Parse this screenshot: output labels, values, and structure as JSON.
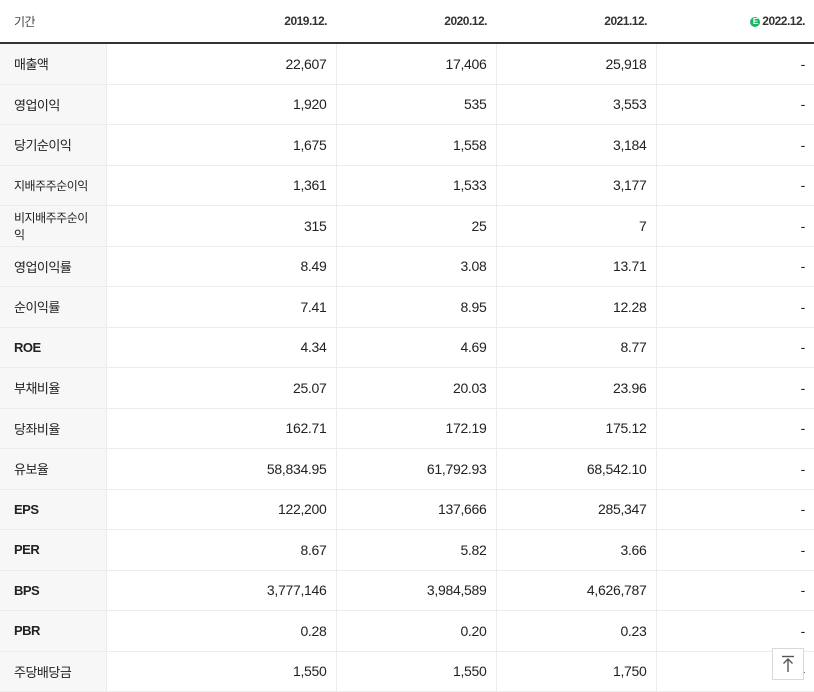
{
  "header": {
    "label": "기간",
    "periods": [
      "2019.12.",
      "2020.12.",
      "2021.12.",
      "2022.12."
    ],
    "estimate_badge": "E"
  },
  "rows": [
    {
      "label": "매출액",
      "values": [
        "22,607",
        "17,406",
        "25,918",
        "-"
      ]
    },
    {
      "label": "영업이익",
      "values": [
        "1,920",
        "535",
        "3,553",
        "-"
      ]
    },
    {
      "label": "당기순이익",
      "values": [
        "1,675",
        "1,558",
        "3,184",
        "-"
      ]
    },
    {
      "label": "지배주주순이익",
      "values": [
        "1,361",
        "1,533",
        "3,177",
        "-"
      ]
    },
    {
      "label": "비지배주주순이익",
      "values": [
        "315",
        "25",
        "7",
        "-"
      ]
    },
    {
      "label": "영업이익률",
      "values": [
        "8.49",
        "3.08",
        "13.71",
        "-"
      ]
    },
    {
      "label": "순이익률",
      "values": [
        "7.41",
        "8.95",
        "12.28",
        "-"
      ]
    },
    {
      "label": "ROE",
      "values": [
        "4.34",
        "4.69",
        "8.77",
        "-"
      ]
    },
    {
      "label": "부채비율",
      "values": [
        "25.07",
        "20.03",
        "23.96",
        "-"
      ]
    },
    {
      "label": "당좌비율",
      "values": [
        "162.71",
        "172.19",
        "175.12",
        "-"
      ]
    },
    {
      "label": "유보율",
      "values": [
        "58,834.95",
        "61,792.93",
        "68,542.10",
        "-"
      ]
    },
    {
      "label": "EPS",
      "values": [
        "122,200",
        "137,666",
        "285,347",
        "-"
      ]
    },
    {
      "label": "PER",
      "values": [
        "8.67",
        "5.82",
        "3.66",
        "-"
      ]
    },
    {
      "label": "BPS",
      "values": [
        "3,777,146",
        "3,984,589",
        "4,626,787",
        "-"
      ]
    },
    {
      "label": "PBR",
      "values": [
        "0.28",
        "0.20",
        "0.23",
        "-"
      ]
    },
    {
      "label": "주당배당금",
      "values": [
        "1,550",
        "1,550",
        "1,750",
        "-"
      ]
    }
  ],
  "scroll_top_button": {
    "icon": "arrow-up-to-top-icon"
  },
  "colors": {
    "estimate_badge": "#1fb463",
    "label_background": "#f7f7f7",
    "header_rule": "#333333"
  }
}
